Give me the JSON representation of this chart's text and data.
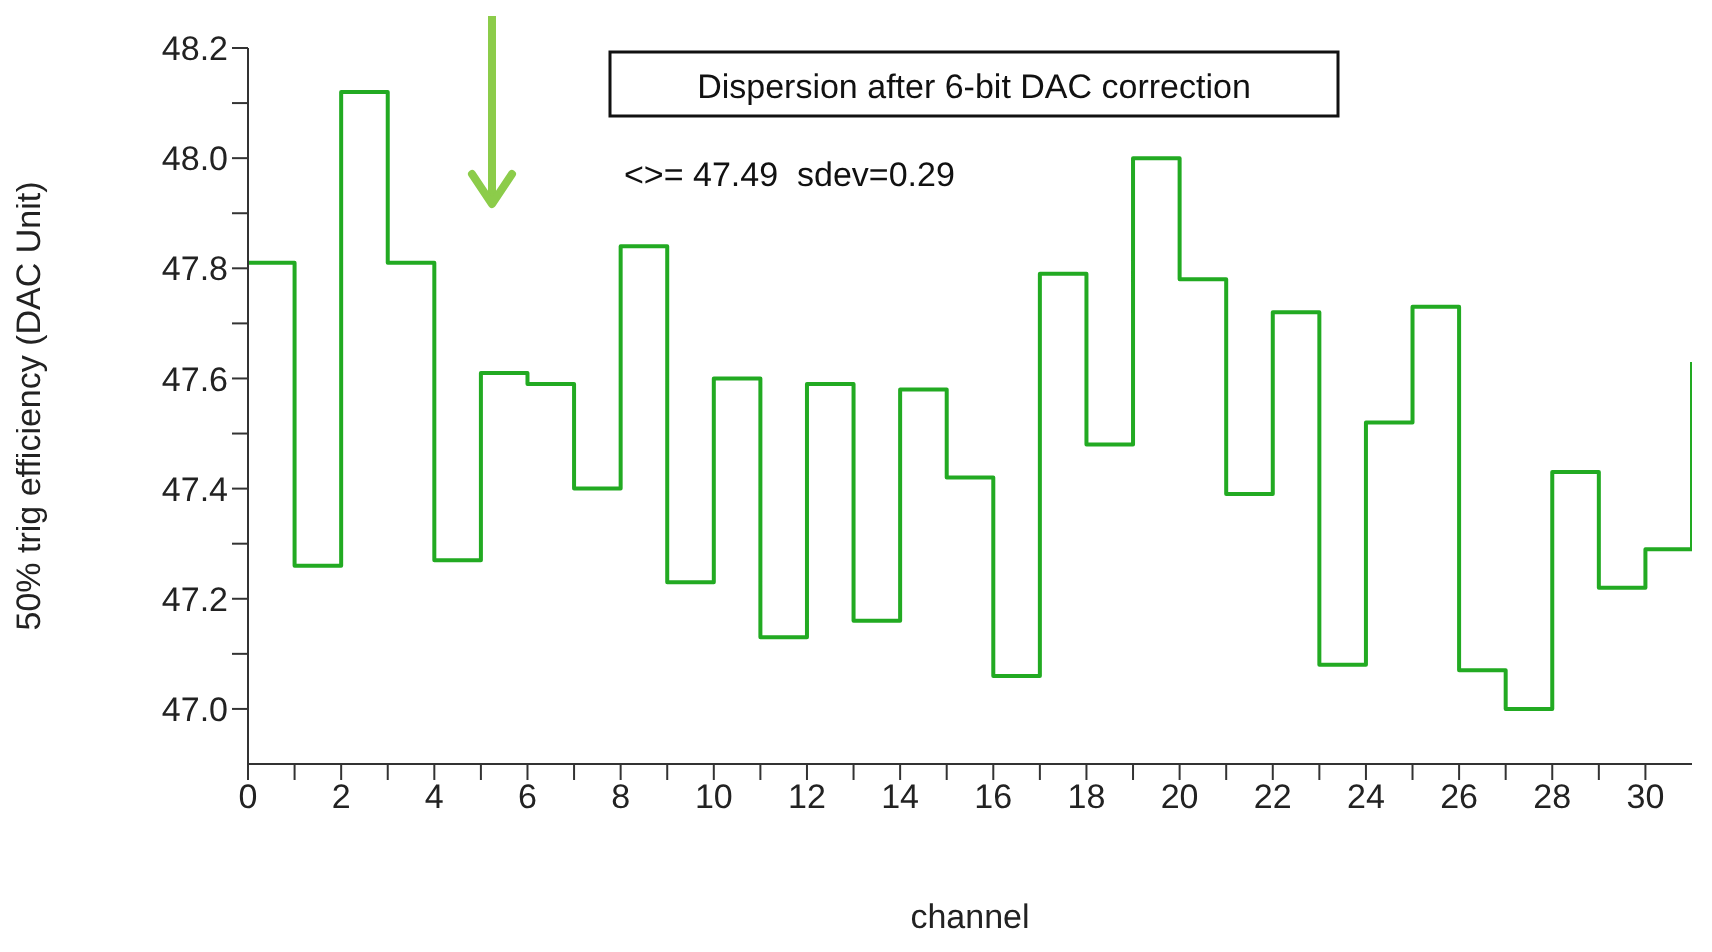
{
  "chart_data": {
    "type": "step",
    "title": "Dispersion after 6-bit DAC correction",
    "annotations": [
      "<>= 47.49  sdev=0.29"
    ],
    "xlabel": "channel",
    "ylabel": "50% trig efficiency (DAC Unit)",
    "x": [
      0,
      1,
      2,
      3,
      4,
      5,
      6,
      7,
      8,
      9,
      10,
      11,
      12,
      13,
      14,
      15,
      16,
      17,
      18,
      19,
      20,
      21,
      22,
      23,
      24,
      25,
      26,
      27,
      28,
      29,
      30,
      31
    ],
    "series": [
      {
        "color": "#22aa22",
        "values": [
          47.81,
          47.26,
          48.12,
          47.81,
          47.27,
          47.61,
          47.59,
          47.4,
          47.84,
          47.23,
          47.6,
          47.13,
          47.59,
          47.16,
          47.58,
          47.42,
          47.06,
          47.79,
          47.48,
          48.0,
          47.78,
          47.39,
          47.72,
          47.08,
          47.52,
          47.73,
          47.07,
          47.0,
          47.43,
          47.22,
          47.29,
          47.63
        ]
      }
    ],
    "xlim": [
      0,
      31
    ],
    "xticks": [
      0,
      {
        "value": 1,
        "label": null
      },
      2,
      {
        "value": 3,
        "label": null
      },
      4,
      {
        "value": 5,
        "label": null
      },
      6,
      {
        "value": 7,
        "label": null
      },
      8,
      {
        "value": 9,
        "label": null
      },
      10,
      {
        "value": 11,
        "label": null
      },
      12,
      {
        "value": 13,
        "label": null
      },
      14,
      {
        "value": 15,
        "label": null
      },
      16,
      {
        "value": 17,
        "label": null
      },
      18,
      {
        "value": 19,
        "label": null
      },
      20,
      {
        "value": 21,
        "label": null
      },
      22,
      {
        "value": 23,
        "label": null
      },
      24,
      {
        "value": 25,
        "label": null
      },
      26,
      {
        "value": 27,
        "label": null
      },
      28,
      {
        "value": 29,
        "label": null
      },
      30
    ],
    "ylim": [
      46.9,
      48.2
    ],
    "yticks": [
      {
        "value": 47,
        "label": "47.0"
      },
      {
        "value": 47.1,
        "label": null
      },
      {
        "value": 47.2,
        "label": "47.2"
      },
      {
        "value": 47.3,
        "label": null
      },
      {
        "value": 47.4,
        "label": "47.4"
      },
      {
        "value": 47.5,
        "label": null
      },
      {
        "value": 47.6,
        "label": "47.6"
      },
      {
        "value": 47.7,
        "label": null
      },
      {
        "value": 47.8,
        "label": "47.8"
      },
      {
        "value": 47.9,
        "label": null
      },
      {
        "value": 48,
        "label": "48.0"
      },
      {
        "value": 48.1,
        "label": null
      },
      {
        "value": 48.2,
        "label": "48.2"
      }
    ],
    "grid": false,
    "legend": false,
    "marker": "none",
    "line_style": "solid"
  }
}
